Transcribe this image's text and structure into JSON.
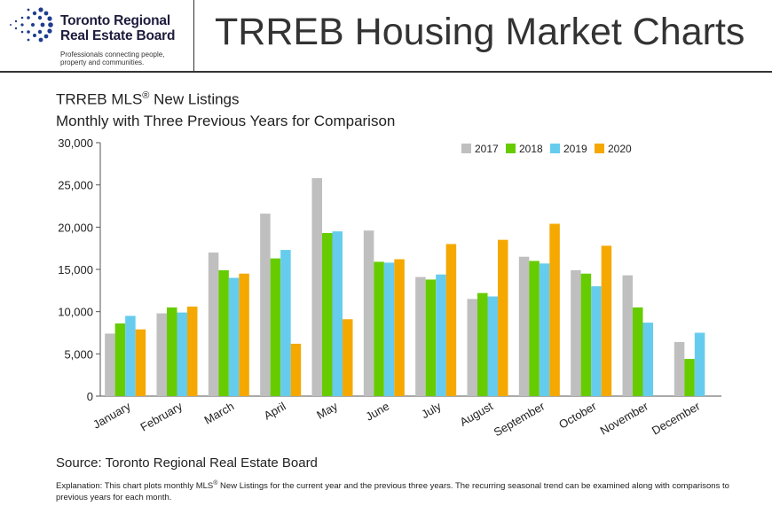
{
  "header": {
    "org_name_line1": "Toronto Regional",
    "org_name_line2": "Real Estate Board",
    "tagline_line1": "Professionals connecting people,",
    "tagline_line2": "property and communities.",
    "page_title": "TRREB Housing Market Charts"
  },
  "chart_title": {
    "line1_prefix": "TRREB MLS",
    "line1_reg": "®",
    "line1_suffix": " New Listings",
    "line2": "Monthly with Three Previous Years for Comparison"
  },
  "chart_data": {
    "type": "bar",
    "categories": [
      "January",
      "February",
      "March",
      "April",
      "May",
      "June",
      "July",
      "August",
      "September",
      "October",
      "November",
      "December"
    ],
    "series": [
      {
        "name": "2017",
        "color": "#bfbfbf",
        "values": [
          7400,
          9800,
          17000,
          21600,
          25800,
          19600,
          14100,
          11500,
          16500,
          14900,
          14300,
          6400
        ]
      },
      {
        "name": "2018",
        "color": "#66cc00",
        "values": [
          8600,
          10500,
          14900,
          16300,
          19300,
          15900,
          13800,
          12200,
          16000,
          14500,
          10500,
          4400
        ]
      },
      {
        "name": "2019",
        "color": "#66ccee",
        "values": [
          9500,
          9900,
          14000,
          17300,
          19500,
          15800,
          14400,
          11800,
          15700,
          13000,
          8700,
          7500
        ]
      },
      {
        "name": "2020",
        "color": "#f5a800",
        "values": [
          7900,
          10600,
          14500,
          6200,
          9100,
          16200,
          18000,
          18500,
          20400,
          17800,
          null,
          null
        ]
      }
    ],
    "y_ticks": [
      "0",
      "5,000",
      "10,000",
      "15,000",
      "20,000",
      "25,000",
      "30,000"
    ],
    "ylim": [
      0,
      30000
    ],
    "legend_position": "top-right"
  },
  "footer": {
    "source": "Source: Toronto Regional Real Estate Board",
    "explanation_prefix": "Explanation: This chart plots monthly MLS",
    "explanation_reg": "®",
    "explanation_suffix": " New Listings for the current year and the previous three years. The recurring seasonal trend can be examined along with comparisons to previous years for each month."
  }
}
